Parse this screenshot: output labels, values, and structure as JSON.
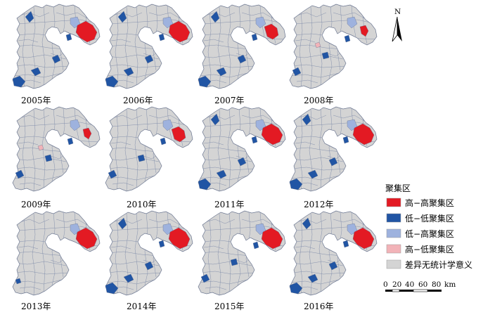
{
  "figure": {
    "maps": [
      {
        "label": "2005年",
        "hh": "large",
        "ll": "many",
        "lh": "some",
        "hl": "none"
      },
      {
        "label": "2006年",
        "hh": "large",
        "ll": "many",
        "lh": "some",
        "hl": "none"
      },
      {
        "label": "2007年",
        "hh": "mid",
        "ll": "many",
        "lh": "some",
        "hl": "none"
      },
      {
        "label": "2008年",
        "hh": "small",
        "ll": "some",
        "lh": "some",
        "hl": "some"
      },
      {
        "label": "2009年",
        "hh": "small",
        "ll": "some",
        "lh": "some",
        "hl": "some"
      },
      {
        "label": "2010年",
        "hh": "mid",
        "ll": "some",
        "lh": "some",
        "hl": "none"
      },
      {
        "label": "2011年",
        "hh": "large",
        "ll": "many",
        "lh": "some",
        "hl": "none"
      },
      {
        "label": "2012年",
        "hh": "large",
        "ll": "many",
        "lh": "some",
        "hl": "none"
      },
      {
        "label": "2013年",
        "hh": "large",
        "ll": "few",
        "lh": "some",
        "hl": "none"
      },
      {
        "label": "2014年",
        "hh": "large",
        "ll": "many",
        "lh": "some",
        "hl": "none"
      },
      {
        "label": "2015年",
        "hh": "large",
        "ll": "some",
        "lh": "some",
        "hl": "none"
      },
      {
        "label": "2016年",
        "hh": "large",
        "ll": "many",
        "lh": "some",
        "hl": "none"
      }
    ]
  },
  "legend": {
    "title": "聚集区",
    "items": [
      {
        "label": "高−高聚集区",
        "color": "#e31a23"
      },
      {
        "label": "低−低聚集区",
        "color": "#2155a4"
      },
      {
        "label": "低−高聚集区",
        "color": "#9eb2de"
      },
      {
        "label": "高−低聚集区",
        "color": "#f2b3b8"
      },
      {
        "label": "差异无统计学意义",
        "color": "#d4d4d4"
      }
    ]
  },
  "north_arrow": {
    "label": "N"
  },
  "scale_bar": {
    "ticks": [
      "0",
      "20",
      "40",
      "60",
      "80"
    ],
    "unit": "km"
  }
}
